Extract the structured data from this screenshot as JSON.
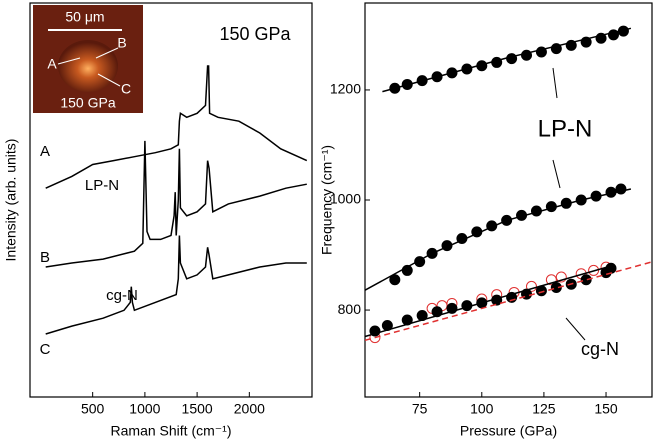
{
  "chart_data": [
    {
      "type": "line",
      "xlabel": "Raman Shift (cm⁻¹)",
      "ylabel": "Intensity (arb. units)",
      "xlim": [
        -100,
        2600
      ],
      "xticks": [
        500,
        1000,
        1500,
        2000
      ],
      "ylim": [
        0,
        100
      ],
      "series": [
        {
          "color": "#000000",
          "x": [
            50,
            300,
            500,
            700,
            900,
            1100,
            1250,
            1320,
            1330,
            1340,
            1400,
            1500,
            1580,
            1600,
            1610,
            1620,
            1700,
            1900,
            2100,
            2300,
            2550
          ],
          "values": [
            53,
            56,
            59,
            60,
            61,
            62,
            63,
            64,
            70,
            72,
            71,
            72,
            74,
            84,
            84,
            72,
            71,
            70,
            67,
            63,
            60
          ]
        },
        {
          "color": "#000000",
          "x": [
            50,
            300,
            600,
            900,
            980,
            1000,
            1020,
            1050,
            1150,
            1250,
            1280,
            1290,
            1300,
            1320,
            1330,
            1340,
            1400,
            1500,
            1580,
            1600,
            1615,
            1650,
            1800,
            2100,
            2350,
            2550
          ],
          "values": [
            33,
            34,
            35,
            37,
            39,
            65,
            42,
            40,
            40,
            41,
            46,
            52,
            41,
            50,
            63,
            48,
            46,
            47,
            49,
            60,
            58,
            47,
            49,
            51,
            53,
            54
          ]
        },
        {
          "color": "#000000",
          "x": [
            50,
            300,
            600,
            800,
            860,
            870,
            880,
            900,
            1100,
            1300,
            1320,
            1330,
            1340,
            1400,
            1500,
            1580,
            1600,
            1615,
            1650,
            1800,
            2100,
            2350,
            2550
          ],
          "values": [
            16,
            18,
            20,
            22,
            24,
            28,
            24,
            22,
            24,
            26,
            30,
            41,
            34,
            30,
            31,
            33,
            38,
            36,
            30,
            31,
            33,
            34,
            34
          ]
        }
      ],
      "annotations": [
        "150 GPa",
        "A",
        "B",
        "C",
        "LP-N",
        "cg-N"
      ],
      "inset": {
        "scale": "50 μm",
        "labels": [
          "A",
          "B",
          "C"
        ],
        "pressure": "150 GPa"
      }
    },
    {
      "type": "scatter",
      "xlabel": "Pressure (GPa)",
      "ylabel": "Frequency (cm⁻¹)",
      "xlim": [
        53,
        168.5
      ],
      "xticks": [
        75,
        100,
        125,
        150
      ],
      "ylim": [
        642,
        1358
      ],
      "yticks": [
        800,
        1000,
        1200
      ],
      "series": [
        {
          "color": "#000000",
          "marker": "filled",
          "x": [
            65,
            70,
            76,
            82,
            88,
            94,
            100,
            106,
            112,
            118,
            124,
            130,
            136,
            142,
            148,
            153,
            157
          ],
          "values": [
            1203,
            1210,
            1217,
            1224,
            1231,
            1238,
            1244,
            1250,
            1257,
            1263,
            1269,
            1275,
            1281,
            1287,
            1294,
            1300,
            1307
          ]
        },
        {
          "color": "#000000",
          "marker": "filled",
          "x": [
            65,
            70,
            75,
            80,
            86,
            92,
            98,
            104,
            110,
            116,
            122,
            128,
            134,
            140,
            146,
            152,
            156
          ],
          "values": [
            855,
            872,
            888,
            903,
            917,
            930,
            942,
            953,
            963,
            972,
            980,
            988,
            994,
            1000,
            1007,
            1014,
            1020
          ]
        },
        {
          "color": "#e03030",
          "marker": "open",
          "x": [
            57,
            80,
            84,
            88,
            100,
            106,
            113,
            120,
            128,
            132,
            140,
            145,
            150
          ],
          "values": [
            750,
            803,
            808,
            812,
            820,
            828,
            832,
            843,
            855,
            860,
            866,
            872,
            878
          ]
        },
        {
          "color": "#000000",
          "marker": "filled",
          "x": [
            57,
            62,
            70,
            76,
            82,
            88,
            94,
            100,
            106,
            112,
            118,
            124,
            130,
            136,
            142,
            150,
            152
          ],
          "values": [
            762,
            772,
            782,
            790,
            797,
            803,
            808,
            813,
            818,
            823,
            829,
            835,
            841,
            847,
            855,
            868,
            876
          ]
        },
        {
          "color": "#000000",
          "marker": "line",
          "x": [
            60,
            110,
            160
          ],
          "values": [
            1197,
            1258,
            1312
          ]
        },
        {
          "color": "#000000",
          "marker": "line",
          "x": [
            53,
            80,
            110,
            140,
            160
          ],
          "values": [
            836,
            903,
            963,
            1000,
            1020
          ]
        },
        {
          "color": "#000000",
          "marker": "line",
          "x": [
            53,
            100,
            152
          ],
          "values": [
            752,
            813,
            880
          ]
        },
        {
          "color": "#e03030",
          "marker": "dashed",
          "x": [
            53,
            168
          ],
          "values": [
            745,
            887
          ]
        }
      ],
      "annotations": [
        "LP-N",
        "cg-N"
      ]
    }
  ]
}
